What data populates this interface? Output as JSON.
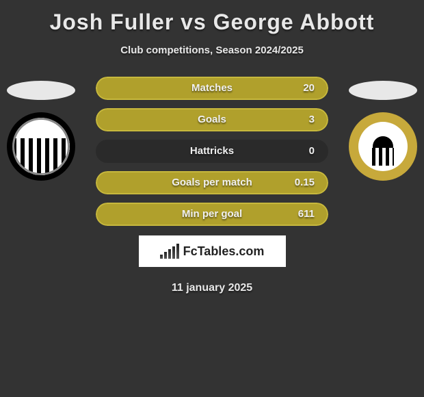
{
  "title": "Josh Fuller vs George Abbott",
  "subtitle": "Club competitions, Season 2024/2025",
  "date": "11 january 2025",
  "colors": {
    "bar_fill": "#b0a02c",
    "bar_border": "#c7b83d",
    "bar_bg": "#2a2a2a"
  },
  "stats": [
    {
      "label": "Matches",
      "value": "20",
      "fill_pct": 100
    },
    {
      "label": "Goals",
      "value": "3",
      "fill_pct": 100
    },
    {
      "label": "Hattricks",
      "value": "0",
      "fill_pct": 0
    },
    {
      "label": "Goals per match",
      "value": "0.15",
      "fill_pct": 100
    },
    {
      "label": "Min per goal",
      "value": "611",
      "fill_pct": 100
    }
  ],
  "badge_text": "FcTables.com"
}
